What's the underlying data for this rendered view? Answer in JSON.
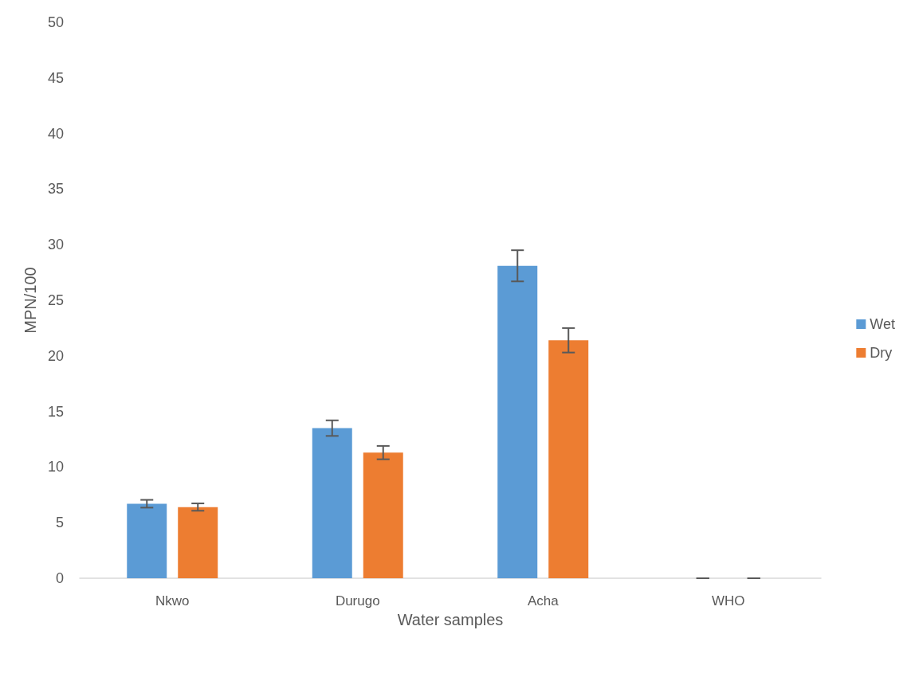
{
  "chart_data": {
    "type": "bar",
    "xlabel": "Water samples",
    "ylabel": "MPN/100",
    "categories": [
      "Nkwo",
      "Durugo",
      "Acha",
      "WHO"
    ],
    "series": [
      {
        "name": "Wet",
        "color": "#5b9bd5",
        "values": [
          6.7,
          13.5,
          28.1,
          0
        ],
        "errors": [
          0.35,
          0.7,
          1.4,
          0
        ]
      },
      {
        "name": "Dry",
        "color": "#ed7d31",
        "values": [
          6.4,
          11.3,
          21.4,
          0
        ],
        "errors": [
          0.33,
          0.6,
          1.1,
          0
        ]
      }
    ],
    "ylim": [
      0,
      50
    ],
    "yticks": [
      0,
      5,
      10,
      15,
      20,
      25,
      30,
      35,
      40,
      45,
      50
    ],
    "grid": false,
    "legend": "right"
  }
}
